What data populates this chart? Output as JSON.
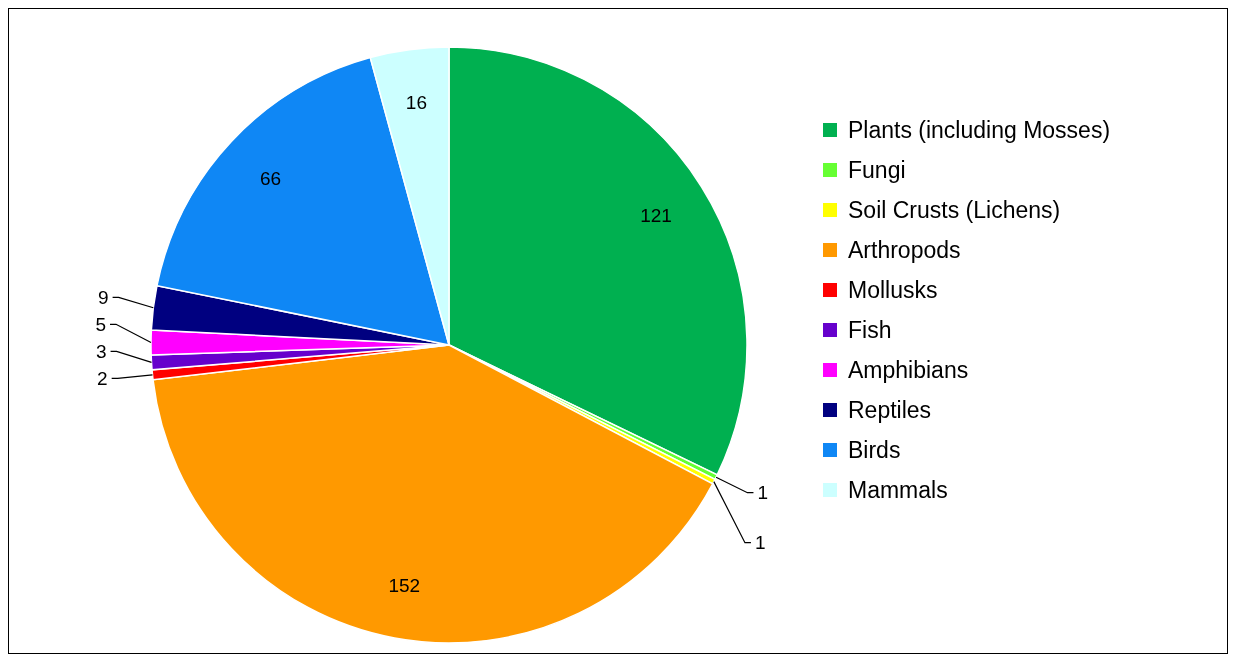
{
  "chart_data": {
    "type": "pie",
    "categories": [
      "Plants (including Mosses)",
      "Fungi",
      "Soil Crusts (Lichens)",
      "Arthropods",
      "Mollusks",
      "Fish",
      "Amphibians",
      "Reptiles",
      "Birds",
      "Mammals"
    ],
    "values": [
      121,
      1,
      1,
      152,
      2,
      3,
      5,
      9,
      66,
      16
    ],
    "colors": [
      "#00b050",
      "#66ff33",
      "#ffff00",
      "#ff9900",
      "#ff0000",
      "#6600cc",
      "#ff00ff",
      "#000080",
      "#0f87f5",
      "#ccffff"
    ],
    "data_labels": true,
    "legend": "right"
  }
}
